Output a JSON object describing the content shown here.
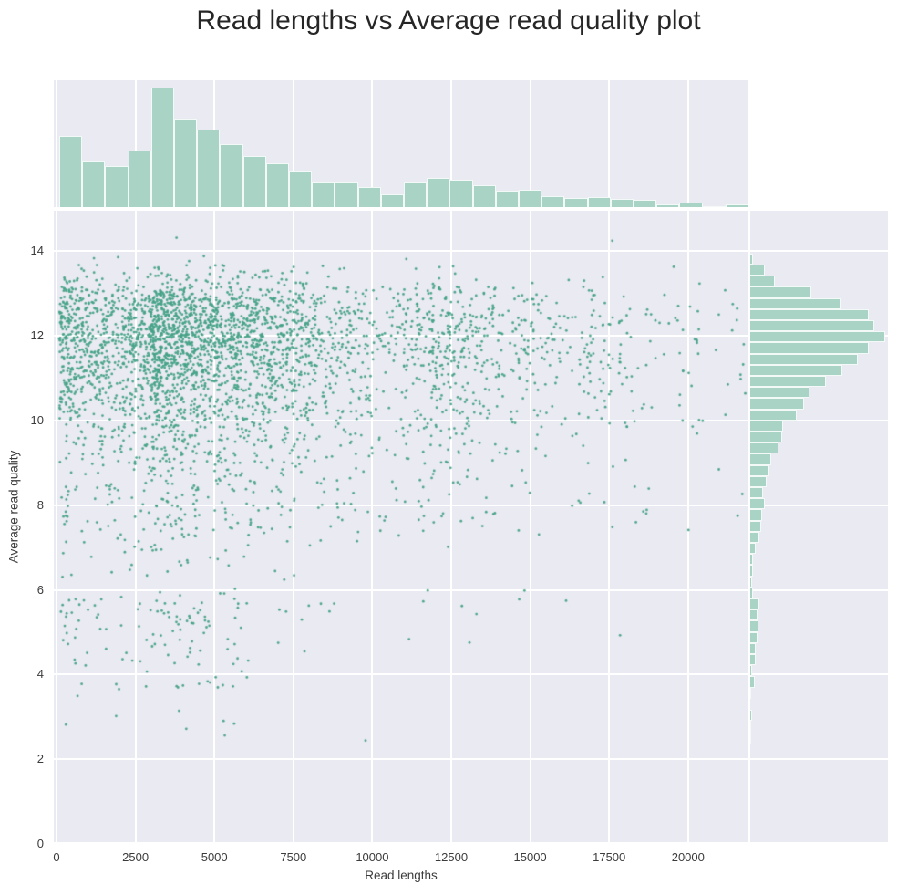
{
  "figure": {
    "kind": "seaborn-jointplot",
    "background": "#ffffff",
    "panel_background": "#eaeaf2",
    "grid_color": "#ffffff",
    "text_color": "#3b3b3b",
    "title_color": "#262626"
  },
  "chart_data": {
    "type": "scatter",
    "title": "Read lengths vs Average read quality plot",
    "xlabel": "Read lengths",
    "ylabel": "Average read quality",
    "xlim": [
      0,
      21900
    ],
    "ylim": [
      0,
      14.96
    ],
    "x_ticks": [
      0,
      2500,
      5000,
      7500,
      10000,
      12500,
      15000,
      17500,
      20000
    ],
    "x_tick_labels": [
      "0",
      "2500",
      "5000",
      "7500",
      "10000",
      "12500",
      "15000",
      "17500",
      "20000"
    ],
    "y_ticks": [
      14,
      12,
      10,
      8,
      6,
      4,
      2,
      0
    ],
    "y_tick_labels": [
      "14",
      "12",
      "10",
      "8",
      "6",
      "4",
      "2",
      "0"
    ],
    "grid": true,
    "legend": false,
    "point_color": "#46a287",
    "hist_fill_color": "#a9d3c4",
    "n_points_estimate": 3800,
    "random_seed": 1337,
    "marginal_x_hist": {
      "comment": "top histogram of read lengths; values are relative bar heights read from the plot",
      "bin_start": 87,
      "bin_width": 727,
      "values": [
        77,
        49,
        44,
        61,
        129,
        96,
        84,
        68,
        55,
        47,
        39,
        27,
        27,
        22,
        14,
        27,
        32,
        30,
        24,
        18,
        19,
        12,
        10,
        11,
        9,
        8,
        3,
        5,
        1,
        3
      ]
    },
    "marginal_y_hist": {
      "comment": "right histogram of average read quality; first bin top at q_start, bins descend by q_step; values are relative bar lengths read from the plot",
      "q_start": 13.95,
      "q_step": 0.263,
      "values": [
        3,
        16,
        26,
        66,
        98,
        127,
        133,
        145,
        127,
        116,
        99,
        81,
        64,
        58,
        50,
        35,
        34,
        30,
        23,
        21,
        18,
        14,
        16,
        13,
        12,
        10,
        6,
        3,
        3,
        2,
        3,
        10,
        8,
        9,
        8,
        6,
        6,
        2,
        5,
        1,
        0,
        2,
        1,
        1
      ]
    },
    "outlier_points": [
      [
        3800,
        14.32
      ],
      [
        17600,
        14.25
      ],
      [
        300,
        2.82
      ]
    ],
    "scatter_shape_notes": "dense core near x 2800-5500 and quality 11-12.5; sparse tail of low quality (<7) mostly at x<9000"
  }
}
